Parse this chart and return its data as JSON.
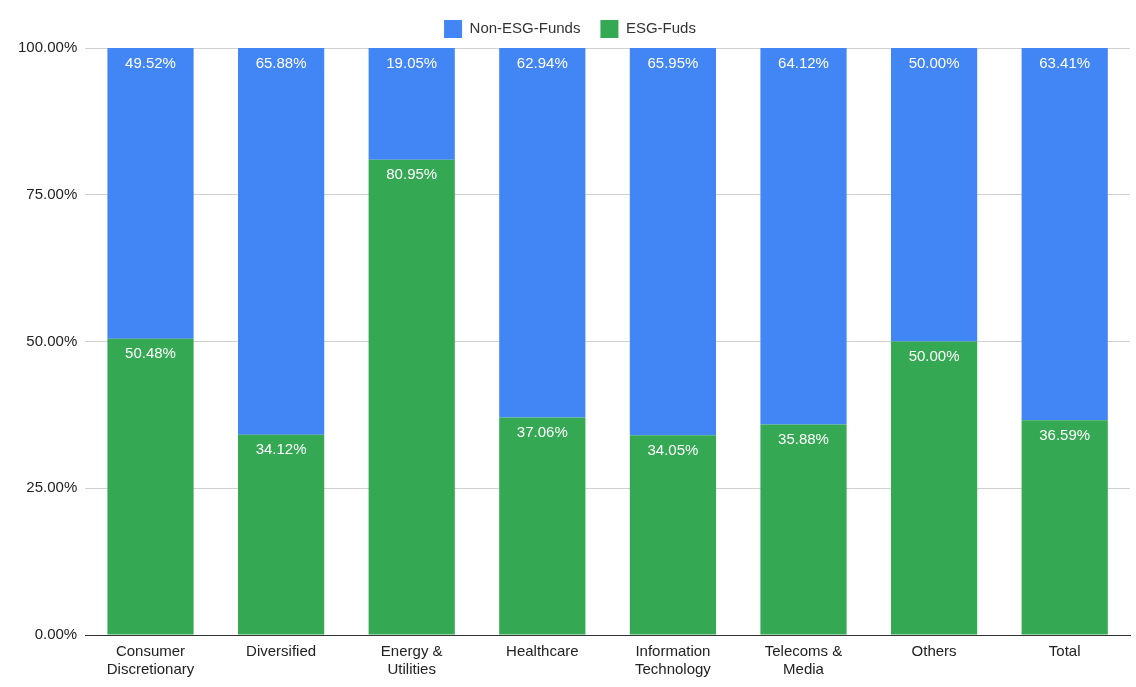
{
  "chart_data": {
    "type": "bar",
    "stacked": true,
    "legend": "top",
    "grid": "y",
    "categories": [
      "Consumer Discretionary",
      "Diversified",
      "Energy & Utilities",
      "Healthcare",
      "Information Technology",
      "Telecoms & Media",
      "Others",
      "Total"
    ],
    "ylim": [
      0,
      100
    ],
    "yticks": [
      {
        "value": 0,
        "label": "0.00%"
      },
      {
        "value": 25,
        "label": "25.00%"
      },
      {
        "value": 50,
        "label": "50.00%"
      },
      {
        "value": 75,
        "label": "75.00%"
      },
      {
        "value": 100,
        "label": "100.00%"
      }
    ],
    "series": [
      {
        "name": "ESG-Fuds",
        "color": "#34a853",
        "values": [
          50.48,
          34.12,
          80.95,
          37.06,
          34.05,
          35.88,
          50.0,
          36.59
        ],
        "value_labels": [
          "50.48%",
          "34.12%",
          "80.95%",
          "37.06%",
          "34.05%",
          "35.88%",
          "50.00%",
          "36.59%"
        ]
      },
      {
        "name": "Non-ESG-Funds",
        "color": "#4285f4",
        "values": [
          49.52,
          65.88,
          19.05,
          62.94,
          65.95,
          64.12,
          50.0,
          63.41
        ],
        "value_labels": [
          "49.52%",
          "65.88%",
          "19.05%",
          "62.94%",
          "65.95%",
          "64.12%",
          "50.00%",
          "63.41%"
        ]
      }
    ]
  }
}
